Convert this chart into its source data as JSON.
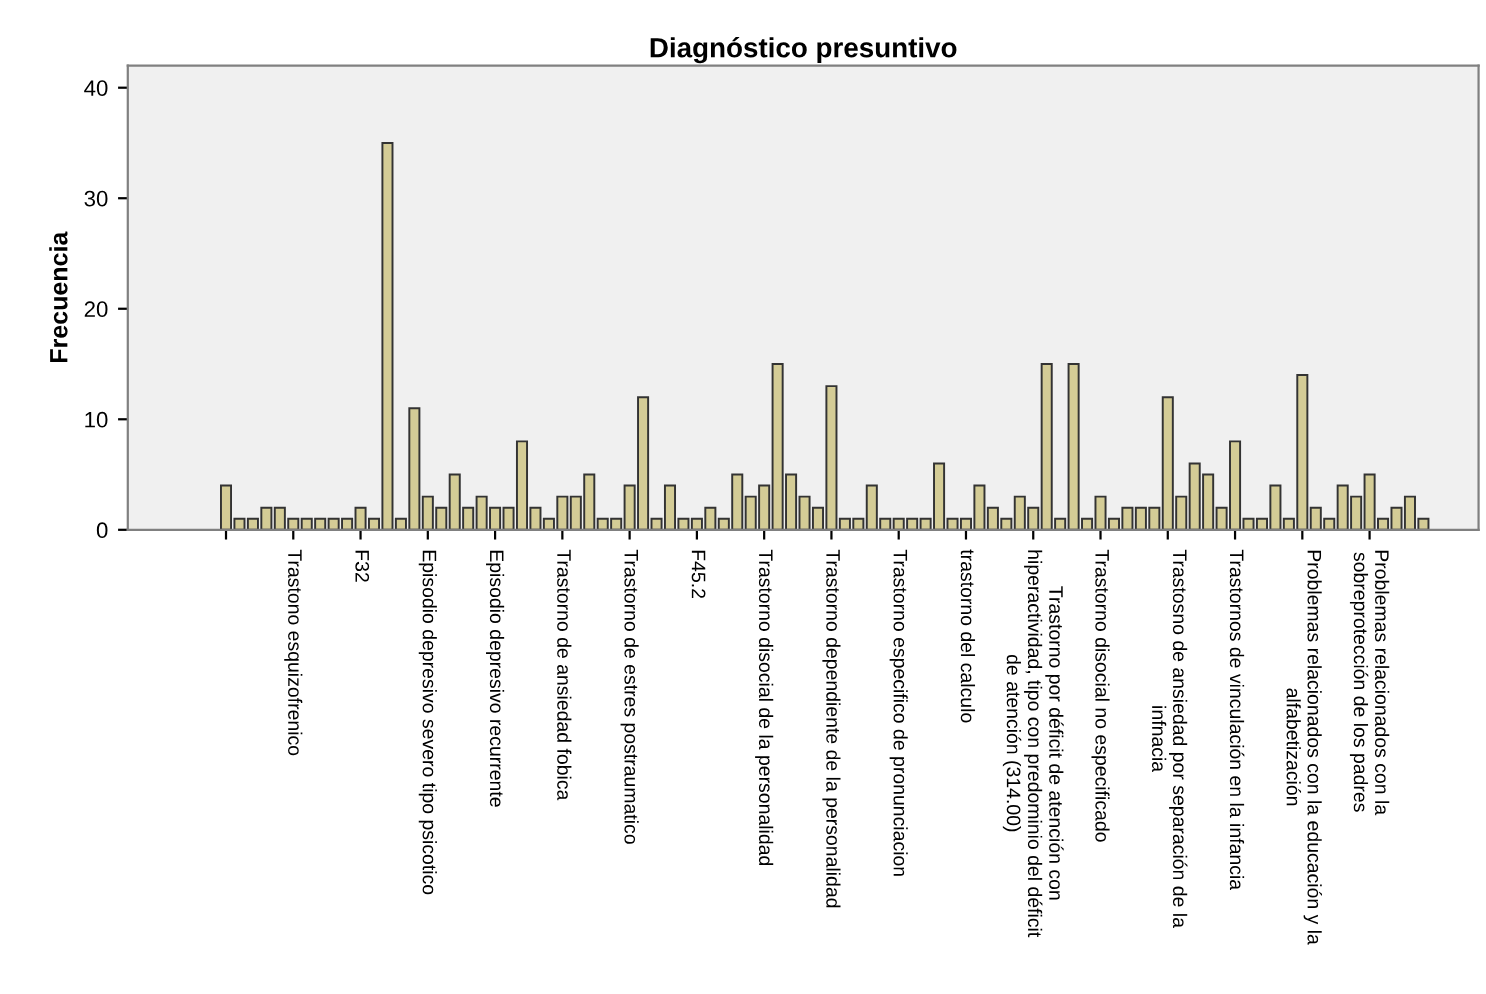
{
  "chart_data": {
    "type": "bar",
    "title": "Diagnóstico presuntivo",
    "ylabel": "Frecuencia",
    "categories": [
      null,
      null,
      null,
      null,
      null,
      "Trastono esquizofrenico",
      null,
      null,
      null,
      null,
      "F32",
      null,
      null,
      null,
      null,
      "Episodio depresivo severo tipo psicotico",
      null,
      null,
      null,
      null,
      "Episodio depresivo recurrente",
      null,
      null,
      null,
      null,
      "Trastorno de ansiedad fobica",
      null,
      null,
      null,
      null,
      "Trastorno de estres postraumatico",
      null,
      null,
      null,
      null,
      "F45.2",
      null,
      null,
      null,
      null,
      "Trastorno disocial de la personalidad",
      null,
      null,
      null,
      null,
      "Trastorno dependiente de la personalidad",
      null,
      null,
      null,
      null,
      "Trastorno especifico de pronunciacion",
      null,
      null,
      null,
      null,
      "trastorno del calculo",
      null,
      null,
      null,
      null,
      "Trastorno por déficit de atención con\nhiperactividad, tipo con predominio del déficit\nde atención (314.00)",
      null,
      null,
      null,
      null,
      "Trastorno disocial no especificado",
      null,
      null,
      null,
      null,
      "Trastosno de ansiedad por separación de la\ninfnacia",
      null,
      null,
      null,
      null,
      "Trastornos de vinculación en la infancia",
      null,
      null,
      null,
      null,
      "Problemas relacionados con la educación y la\nalfabetización",
      null,
      null,
      null,
      null,
      "Problemas relacionados con la\nsobreprotección de los padres",
      null,
      null,
      null,
      null
    ],
    "values": [
      4,
      1,
      1,
      2,
      2,
      1,
      1,
      1,
      1,
      1,
      2,
      1,
      35,
      1,
      11,
      3,
      2,
      5,
      2,
      3,
      2,
      2,
      8,
      2,
      1,
      3,
      3,
      5,
      1,
      1,
      4,
      12,
      1,
      4,
      1,
      1,
      2,
      1,
      5,
      3,
      4,
      15,
      5,
      3,
      2,
      13,
      1,
      1,
      4,
      1,
      1,
      1,
      1,
      6,
      1,
      1,
      4,
      2,
      1,
      3,
      2,
      15,
      1,
      15,
      1,
      3,
      1,
      2,
      2,
      2,
      12,
      3,
      6,
      5,
      2,
      8,
      1,
      1,
      4,
      1,
      14,
      2,
      1,
      4,
      3,
      5,
      1,
      2,
      3,
      1
    ],
    "color": "#d4cc96",
    "ylim": [
      0,
      42
    ],
    "yticks": [
      0,
      10,
      20,
      30,
      40
    ],
    "grid": false,
    "legend": false
  }
}
